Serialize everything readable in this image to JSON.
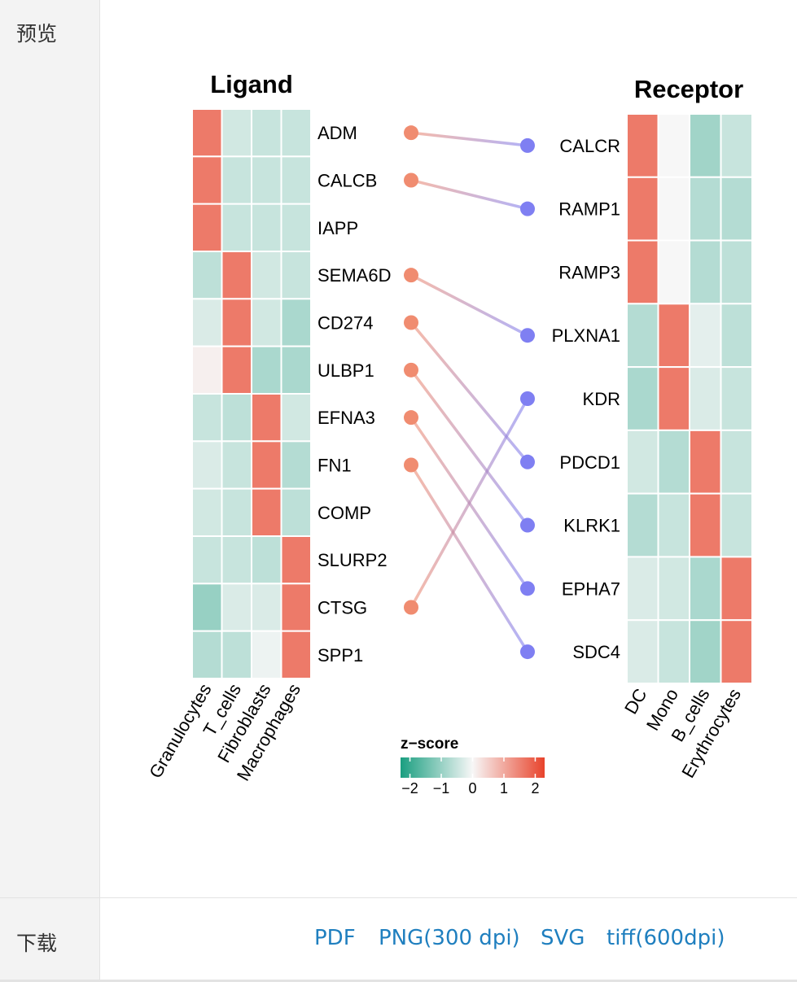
{
  "sidebar": {
    "preview_label": "预览",
    "download_label": "下载"
  },
  "downloads": [
    "PDF",
    "PNG(300 dpi)",
    "SVG",
    "tiff(600dpi)"
  ],
  "chart_data": {
    "type": "heatmap",
    "ligand": {
      "title": "Ligand",
      "rows": [
        "ADM",
        "CALCB",
        "IAPP",
        "SEMA6D",
        "CD274",
        "ULBP1",
        "EFNA3",
        "FN1",
        "COMP",
        "SLURP2",
        "CTSG",
        "SPP1"
      ],
      "columns": [
        "Granulocytes",
        "T_cells",
        "Fibroblasts",
        "Macrophages"
      ],
      "z": [
        [
          1.6,
          -0.4,
          -0.5,
          -0.5
        ],
        [
          1.6,
          -0.5,
          -0.5,
          -0.5
        ],
        [
          1.6,
          -0.5,
          -0.5,
          -0.5
        ],
        [
          -0.6,
          1.6,
          -0.4,
          -0.5
        ],
        [
          -0.3,
          1.6,
          -0.4,
          -0.8
        ],
        [
          0.1,
          1.6,
          -0.8,
          -0.8
        ],
        [
          -0.5,
          -0.6,
          1.6,
          -0.4
        ],
        [
          -0.3,
          -0.5,
          1.6,
          -0.7
        ],
        [
          -0.4,
          -0.5,
          1.6,
          -0.6
        ],
        [
          -0.5,
          -0.5,
          -0.6,
          1.6
        ],
        [
          -1.0,
          -0.3,
          -0.3,
          1.6
        ],
        [
          -0.7,
          -0.6,
          -0.1,
          1.6
        ]
      ]
    },
    "receptor": {
      "title": "Receptor",
      "rows": [
        "CALCR",
        "RAMP1",
        "RAMP3",
        "PLXNA1",
        "KDR",
        "PDCD1",
        "KLRK1",
        "EPHA7",
        "SDC4"
      ],
      "columns": [
        "DC",
        "Mono",
        "B_cells",
        "Erythrocytes"
      ],
      "z": [
        [
          1.6,
          0.0,
          -0.9,
          -0.5
        ],
        [
          1.6,
          0.0,
          -0.7,
          -0.7
        ],
        [
          1.6,
          0.0,
          -0.7,
          -0.6
        ],
        [
          -0.7,
          1.6,
          -0.2,
          -0.6
        ],
        [
          -0.8,
          1.6,
          -0.3,
          -0.5
        ],
        [
          -0.4,
          -0.7,
          1.6,
          -0.5
        ],
        [
          -0.7,
          -0.5,
          1.6,
          -0.5
        ],
        [
          -0.3,
          -0.4,
          -0.8,
          1.6
        ],
        [
          -0.3,
          -0.5,
          -0.9,
          1.6
        ]
      ]
    },
    "links": [
      [
        "ADM",
        "CALCR"
      ],
      [
        "CALCB",
        "RAMP1"
      ],
      [
        "SEMA6D",
        "PLXNA1"
      ],
      [
        "CD274",
        "PDCD1"
      ],
      [
        "ULBP1",
        "KLRK1"
      ],
      [
        "EFNA3",
        "EPHA7"
      ],
      [
        "FN1",
        "SDC4"
      ],
      [
        "CTSG",
        "KDR"
      ]
    ],
    "legend": {
      "title": "z−score",
      "ticks": [
        "−2",
        "−1",
        "0",
        "1",
        "2"
      ],
      "tick_values": [
        -2,
        -1,
        0,
        1,
        2
      ],
      "range": [
        -2.3,
        2.3
      ]
    },
    "colors": {
      "low": "#1a9e80",
      "mid": "#f7f7f7",
      "high": "#e8432b",
      "ligand_point": "#f08c70",
      "receptor_point": "#7f7ff2"
    }
  }
}
